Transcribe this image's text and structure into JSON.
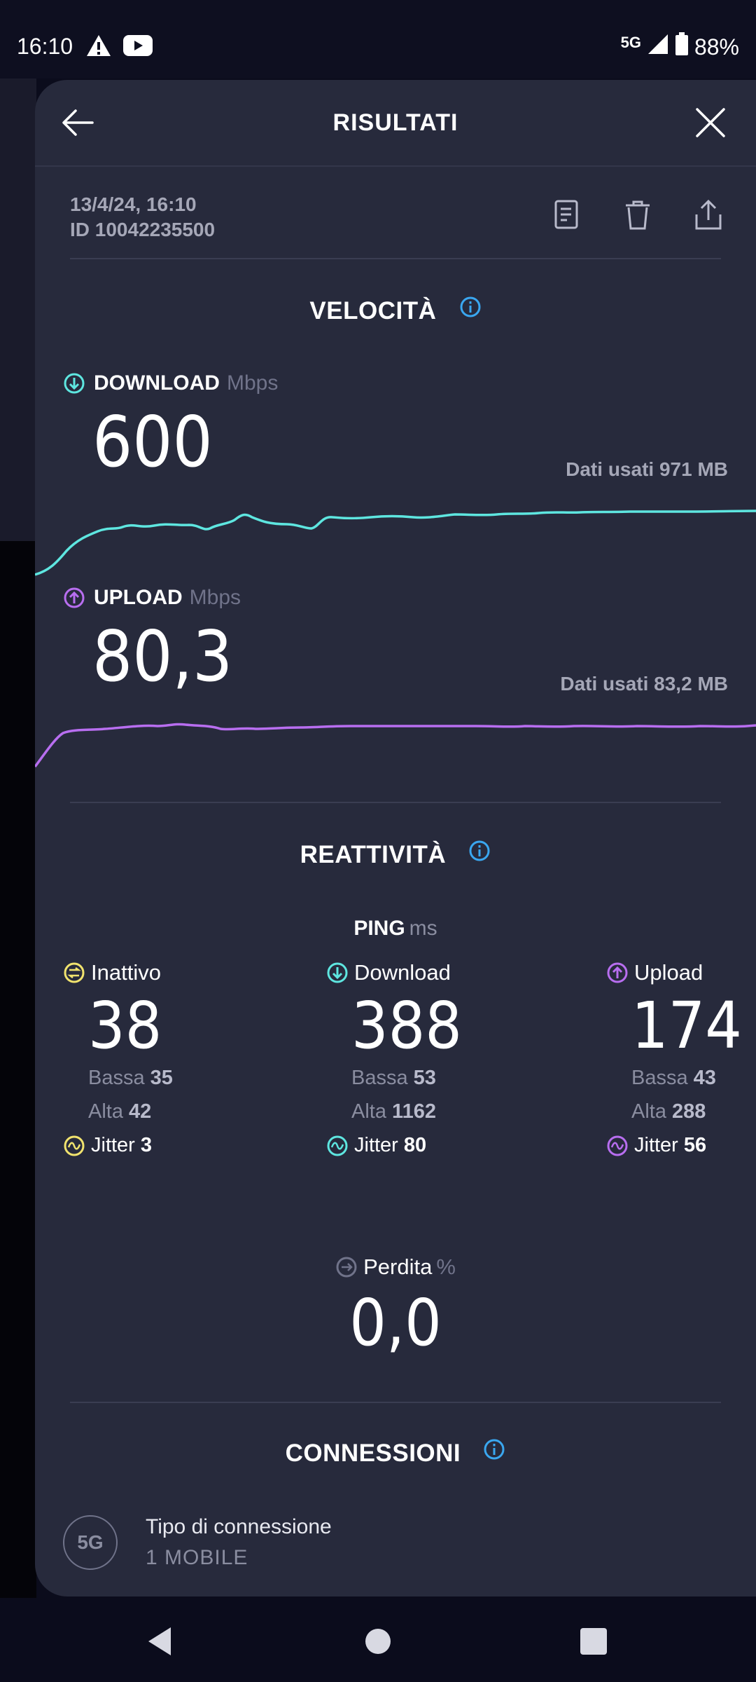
{
  "status_bar": {
    "time": "16:10",
    "network": "5G",
    "battery": "88%"
  },
  "header": {
    "title": "RISULTATI"
  },
  "result": {
    "date": "13/4/24, 16:10",
    "id": "ID 10042235500"
  },
  "speed": {
    "title": "VELOCITÀ",
    "download": {
      "label": "DOWNLOAD",
      "unit": "Mbps",
      "value": "600",
      "data_used": "Dati usati 971 MB",
      "color": "#5ee6e0"
    },
    "upload": {
      "label": "UPLOAD",
      "unit": "Mbps",
      "value": "80,3",
      "data_used": "Dati usati 83,2 MB",
      "color": "#b86ef0"
    }
  },
  "responsiveness": {
    "title": "REATTIVITÀ",
    "ping_label": "PING",
    "ping_unit": "ms",
    "columns": [
      {
        "label": "Inattivo",
        "value": "38",
        "low_label": "Bassa",
        "low": "35",
        "high_label": "Alta",
        "high": "42",
        "jitter_label": "Jitter",
        "jitter": "3",
        "color": "#f1e36e"
      },
      {
        "label": "Download",
        "value": "388",
        "low_label": "Bassa",
        "low": "53",
        "high_label": "Alta",
        "high": "1162",
        "jitter_label": "Jitter",
        "jitter": "80",
        "color": "#5ee6e0"
      },
      {
        "label": "Upload",
        "value": "174",
        "low_label": "Bassa",
        "low": "43",
        "high_label": "Alta",
        "high": "288",
        "jitter_label": "Jitter",
        "jitter": "56",
        "color": "#b86ef0"
      }
    ],
    "loss_label": "Perdita",
    "loss_unit": "%",
    "loss_value": "0,0"
  },
  "connections": {
    "title": "CONNESSIONI",
    "badge": "5G",
    "type_label": "Tipo di connessione",
    "type_value": "1 MOBILE"
  }
}
